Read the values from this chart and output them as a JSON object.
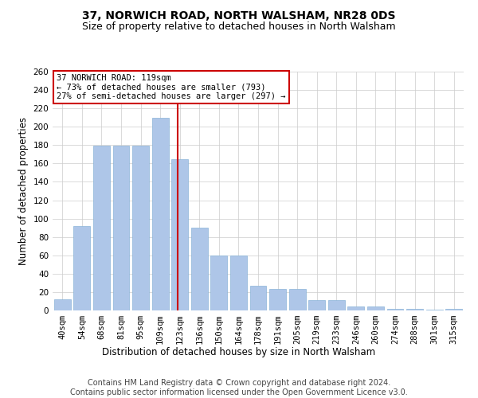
{
  "title": "37, NORWICH ROAD, NORTH WALSHAM, NR28 0DS",
  "subtitle": "Size of property relative to detached houses in North Walsham",
  "xlabel": "Distribution of detached houses by size in North Walsham",
  "ylabel": "Number of detached properties",
  "categories": [
    "40sqm",
    "54sqm",
    "68sqm",
    "81sqm",
    "95sqm",
    "109sqm",
    "123sqm",
    "136sqm",
    "150sqm",
    "164sqm",
    "178sqm",
    "191sqm",
    "205sqm",
    "219sqm",
    "233sqm",
    "246sqm",
    "260sqm",
    "274sqm",
    "288sqm",
    "301sqm",
    "315sqm"
  ],
  "values": [
    12,
    92,
    179,
    179,
    179,
    210,
    165,
    90,
    60,
    60,
    27,
    23,
    23,
    11,
    11,
    4,
    4,
    2,
    2,
    1,
    2
  ],
  "bar_color": "#aec6e8",
  "bar_edge_color": "#8ab4d8",
  "highlight_color": "#cc0000",
  "annotation_title": "37 NORWICH ROAD: 119sqm",
  "annotation_line1": "← 73% of detached houses are smaller (793)",
  "annotation_line2": "27% of semi-detached houses are larger (297) →",
  "annotation_box_color": "#cc0000",
  "ylim": [
    0,
    260
  ],
  "yticks": [
    0,
    20,
    40,
    60,
    80,
    100,
    120,
    140,
    160,
    180,
    200,
    220,
    240,
    260
  ],
  "footer_line1": "Contains HM Land Registry data © Crown copyright and database right 2024.",
  "footer_line2": "Contains public sector information licensed under the Open Government Licence v3.0.",
  "bg_color": "#ffffff",
  "grid_color": "#cccccc",
  "title_fontsize": 10,
  "subtitle_fontsize": 9,
  "axis_label_fontsize": 8.5,
  "tick_fontsize": 7.5,
  "annotation_fontsize": 7.5,
  "footer_fontsize": 7
}
